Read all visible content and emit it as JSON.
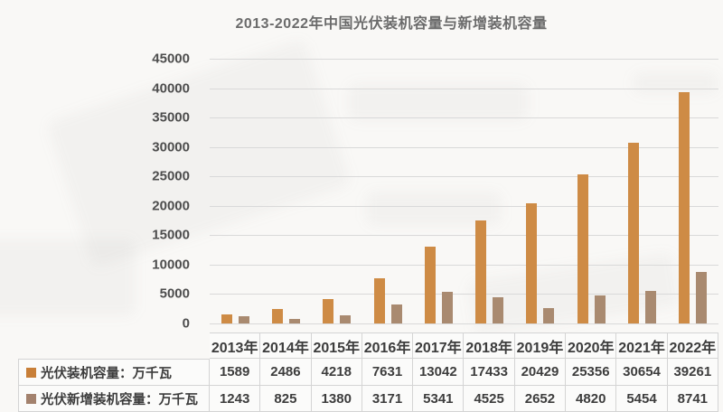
{
  "title": "2013-2022年中国光伏装机容量与新增装机容量",
  "colors": {
    "series1_bar": "#ce8b45",
    "series2_bar": "#a98a70",
    "legend1_swatch": "#c87f38",
    "legend2_swatch": "#a3826e",
    "gridline": "#d9d9d9",
    "text": "#3d3d3d"
  },
  "chart_data": {
    "type": "bar",
    "title": "2013-2022年中国光伏装机容量与新增装机容量",
    "categories": [
      "2013年",
      "2014年",
      "2015年",
      "2016年",
      "2017年",
      "2018年",
      "2019年",
      "2020年",
      "2021年",
      "2022年"
    ],
    "series": [
      {
        "name": "光伏装机容量：万千瓦",
        "color": "#ce8b45",
        "values": [
          1589,
          2486,
          4218,
          7631,
          13042,
          17433,
          20429,
          25356,
          30654,
          39261
        ]
      },
      {
        "name": "光伏新增装机容量：万千瓦",
        "color": "#a98a70",
        "values": [
          1243,
          825,
          1380,
          3171,
          5341,
          4525,
          2652,
          4820,
          5454,
          8741
        ]
      }
    ],
    "xlabel": "",
    "ylabel": "",
    "ylim": [
      0,
      45000
    ],
    "yticks": [
      0,
      5000,
      10000,
      15000,
      20000,
      25000,
      30000,
      35000,
      40000,
      45000
    ],
    "grid": true,
    "legend_position": "table-left"
  }
}
